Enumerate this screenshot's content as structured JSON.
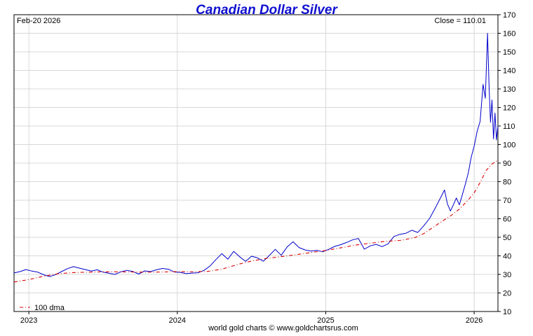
{
  "chart_data": {
    "type": "line",
    "title": "Canadian Dollar Silver",
    "date_label": "Feb-20  2026",
    "close_label": "Close = 110.01",
    "footer": "world gold charts © www.goldchartsrus.com",
    "legend_label": "100 dma",
    "legend_position": "bottom-left",
    "xlim": [
      2022.9,
      2026.16
    ],
    "ylim": [
      10,
      170
    ],
    "x_ticks": [
      {
        "label": "2023",
        "value": 2023.0
      },
      {
        "label": "2024",
        "value": 2024.0
      },
      {
        "label": "2025",
        "value": 2025.0
      },
      {
        "label": "2026",
        "value": 2026.0
      }
    ],
    "y_ticks": [
      10,
      20,
      30,
      40,
      50,
      60,
      70,
      80,
      90,
      100,
      110,
      120,
      130,
      140,
      150,
      160,
      170
    ],
    "colors": {
      "price": "#0000cc",
      "dma": "#dd0000",
      "title": "#1010d0",
      "grid": "#d8d8d8"
    },
    "series": [
      {
        "name": "Canadian Dollar Silver",
        "style": "solid",
        "points": [
          [
            2022.9,
            30.8
          ],
          [
            2022.94,
            31.5
          ],
          [
            2022.98,
            32.6
          ],
          [
            2023.02,
            31.8
          ],
          [
            2023.06,
            31.2
          ],
          [
            2023.1,
            29.8
          ],
          [
            2023.14,
            28.8
          ],
          [
            2023.18,
            29.9
          ],
          [
            2023.22,
            31.5
          ],
          [
            2023.26,
            33.1
          ],
          [
            2023.3,
            34.2
          ],
          [
            2023.34,
            33.4
          ],
          [
            2023.38,
            32.6
          ],
          [
            2023.42,
            31.8
          ],
          [
            2023.46,
            32.5
          ],
          [
            2023.5,
            31.2
          ],
          [
            2023.54,
            30.6
          ],
          [
            2023.58,
            30.0
          ],
          [
            2023.62,
            31.4
          ],
          [
            2023.66,
            32.2
          ],
          [
            2023.7,
            31.6
          ],
          [
            2023.74,
            30.2
          ],
          [
            2023.78,
            31.9
          ],
          [
            2023.82,
            31.5
          ],
          [
            2023.86,
            32.5
          ],
          [
            2023.9,
            33.2
          ],
          [
            2023.94,
            32.8
          ],
          [
            2023.98,
            31.3
          ],
          [
            2024.02,
            31.1
          ],
          [
            2024.06,
            30.4
          ],
          [
            2024.1,
            30.7
          ],
          [
            2024.14,
            30.9
          ],
          [
            2024.18,
            32.2
          ],
          [
            2024.22,
            34.5
          ],
          [
            2024.26,
            38.0
          ],
          [
            2024.3,
            41.2
          ],
          [
            2024.34,
            38.2
          ],
          [
            2024.38,
            42.4
          ],
          [
            2024.42,
            39.5
          ],
          [
            2024.46,
            37.0
          ],
          [
            2024.5,
            39.8
          ],
          [
            2024.54,
            38.9
          ],
          [
            2024.58,
            37.1
          ],
          [
            2024.62,
            40.2
          ],
          [
            2024.66,
            43.5
          ],
          [
            2024.7,
            40.3
          ],
          [
            2024.74,
            44.8
          ],
          [
            2024.78,
            47.6
          ],
          [
            2024.82,
            44.5
          ],
          [
            2024.86,
            43.2
          ],
          [
            2024.9,
            42.6
          ],
          [
            2024.94,
            43.0
          ],
          [
            2024.98,
            42.2
          ],
          [
            2025.02,
            43.5
          ],
          [
            2025.06,
            45.1
          ],
          [
            2025.1,
            46.0
          ],
          [
            2025.14,
            47.2
          ],
          [
            2025.18,
            48.6
          ],
          [
            2025.22,
            49.4
          ],
          [
            2025.26,
            43.6
          ],
          [
            2025.3,
            45.4
          ],
          [
            2025.34,
            46.2
          ],
          [
            2025.38,
            45.0
          ],
          [
            2025.42,
            46.5
          ],
          [
            2025.46,
            50.5
          ],
          [
            2025.5,
            51.6
          ],
          [
            2025.54,
            52.2
          ],
          [
            2025.58,
            53.8
          ],
          [
            2025.62,
            52.6
          ],
          [
            2025.66,
            56.2
          ],
          [
            2025.7,
            60.2
          ],
          [
            2025.74,
            66.1
          ],
          [
            2025.78,
            72.4
          ],
          [
            2025.8,
            75.5
          ],
          [
            2025.82,
            68.0
          ],
          [
            2025.84,
            64.2
          ],
          [
            2025.86,
            67.6
          ],
          [
            2025.88,
            71.2
          ],
          [
            2025.9,
            67.5
          ],
          [
            2025.92,
            72.9
          ],
          [
            2025.94,
            78.5
          ],
          [
            2025.96,
            84.6
          ],
          [
            2025.98,
            93.2
          ],
          [
            2026.0,
            99.1
          ],
          [
            2026.02,
            107.2
          ],
          [
            2026.04,
            112.5
          ],
          [
            2026.06,
            132.4
          ],
          [
            2026.075,
            125.0
          ],
          [
            2026.09,
            160.0
          ],
          [
            2026.1,
            132.0
          ],
          [
            2026.11,
            112.0
          ],
          [
            2026.12,
            124.0
          ],
          [
            2026.13,
            103.0
          ],
          [
            2026.14,
            117.0
          ],
          [
            2026.15,
            102.5
          ],
          [
            2026.16,
            110.0
          ]
        ]
      },
      {
        "name": "100 dma",
        "style": "dash-dot",
        "points": [
          [
            2022.9,
            25.9
          ],
          [
            2023.0,
            27.2
          ],
          [
            2023.1,
            29.0
          ],
          [
            2023.2,
            30.4
          ],
          [
            2023.3,
            31.0
          ],
          [
            2023.4,
            31.2
          ],
          [
            2023.5,
            31.4
          ],
          [
            2023.6,
            31.4
          ],
          [
            2023.7,
            31.3
          ],
          [
            2023.8,
            31.2
          ],
          [
            2023.9,
            31.3
          ],
          [
            2024.0,
            31.5
          ],
          [
            2024.1,
            31.4
          ],
          [
            2024.2,
            31.6
          ],
          [
            2024.3,
            32.8
          ],
          [
            2024.4,
            35.2
          ],
          [
            2024.5,
            37.2
          ],
          [
            2024.6,
            38.6
          ],
          [
            2024.7,
            39.6
          ],
          [
            2024.8,
            40.6
          ],
          [
            2024.9,
            41.8
          ],
          [
            2025.0,
            42.9
          ],
          [
            2025.1,
            44.3
          ],
          [
            2025.2,
            45.8
          ],
          [
            2025.3,
            46.8
          ],
          [
            2025.4,
            47.8
          ],
          [
            2025.5,
            48.3
          ],
          [
            2025.6,
            49.8
          ],
          [
            2025.66,
            52.0
          ],
          [
            2025.72,
            55.2
          ],
          [
            2025.78,
            58.5
          ],
          [
            2025.84,
            61.5
          ],
          [
            2025.9,
            65.2
          ],
          [
            2025.96,
            70.2
          ],
          [
            2026.0,
            74.0
          ],
          [
            2026.04,
            79.5
          ],
          [
            2026.08,
            86.0
          ],
          [
            2026.12,
            89.5
          ],
          [
            2026.16,
            91.5
          ]
        ]
      }
    ]
  }
}
